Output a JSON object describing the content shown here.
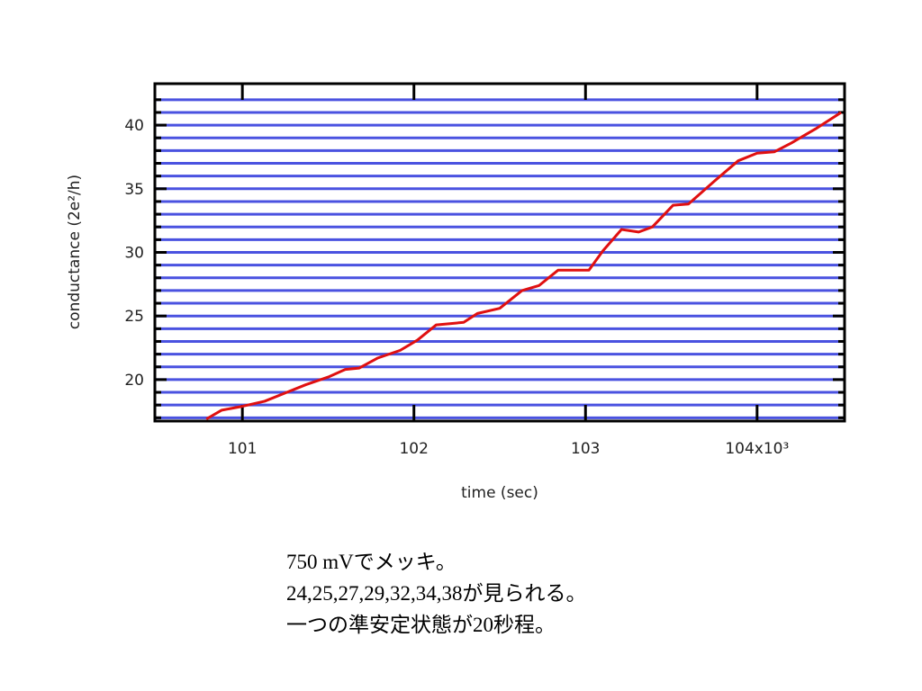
{
  "chart_data": {
    "type": "line",
    "xlabel": "time (sec)",
    "ylabel": "conductance (2e²/h)",
    "x": [
      100.79,
      100.88,
      101.0,
      101.13,
      101.24,
      101.37,
      101.5,
      101.6,
      101.68,
      101.79,
      101.92,
      102.02,
      102.13,
      102.29,
      102.37,
      102.5,
      102.63,
      102.73,
      102.84,
      102.94,
      103.02,
      103.1,
      103.21,
      103.31,
      103.39,
      103.51,
      103.6,
      103.76,
      103.89,
      104.0,
      104.1,
      104.2,
      104.34,
      104.49
    ],
    "values": [
      16.9,
      17.6,
      17.9,
      18.3,
      18.9,
      19.6,
      20.2,
      20.8,
      20.9,
      21.7,
      22.3,
      23.1,
      24.3,
      24.5,
      25.2,
      25.6,
      27.0,
      27.4,
      28.6,
      28.6,
      28.6,
      30.1,
      31.8,
      31.6,
      32.0,
      33.7,
      33.8,
      35.7,
      37.2,
      37.8,
      37.9,
      38.6,
      39.7,
      41.0
    ],
    "color": "#e01010",
    "grid_color": "#4a52e0",
    "xlim": [
      100.49,
      104.51
    ],
    "xticks": [
      101,
      102,
      103,
      {
        "value": 104,
        "label": "104x10³"
      }
    ],
    "ylim": [
      16.74,
      43.26
    ],
    "yticks": [
      20,
      25,
      30,
      35,
      40
    ],
    "minor_yticks": [
      17,
      18,
      19,
      21,
      22,
      23,
      24,
      26,
      27,
      28,
      29,
      31,
      32,
      33,
      34,
      36,
      37,
      38,
      39,
      41,
      42
    ],
    "grid": true
  },
  "notes": [
    "750 mVでメッキ。",
    "24,25,27,29,32,34,38が見られる。",
    "一つの準安定状態が20秒程。"
  ]
}
